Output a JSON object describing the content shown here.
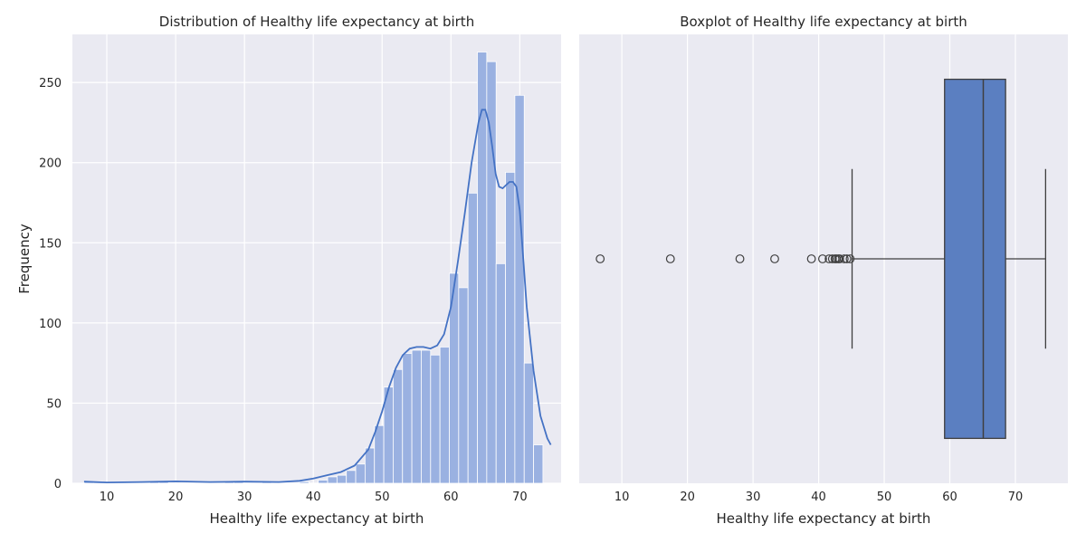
{
  "chart_data": [
    {
      "type": "bar",
      "title": "Distribution of Healthy life expectancy at birth",
      "xlabel": "Healthy life expectancy at birth",
      "ylabel": "Frequency",
      "xlim": [
        5,
        76
      ],
      "ylim": [
        0,
        280
      ],
      "xticks": [
        10,
        20,
        30,
        40,
        50,
        60,
        70
      ],
      "yticks": [
        0,
        50,
        100,
        150,
        200,
        250
      ],
      "grid": true,
      "bin_width": 1.36,
      "bars": [
        {
          "x0": 6.72,
          "count": 1
        },
        {
          "x0": 8.08,
          "count": 1
        },
        {
          "x0": 16.24,
          "count": 1
        },
        {
          "x0": 17.6,
          "count": 1
        },
        {
          "x0": 27.12,
          "count": 1
        },
        {
          "x0": 28.48,
          "count": 1
        },
        {
          "x0": 32.56,
          "count": 1
        },
        {
          "x0": 38.0,
          "count": 1
        },
        {
          "x0": 40.72,
          "count": 2
        },
        {
          "x0": 42.08,
          "count": 4
        },
        {
          "x0": 43.44,
          "count": 5
        },
        {
          "x0": 44.8,
          "count": 8
        },
        {
          "x0": 46.16,
          "count": 12
        },
        {
          "x0": 47.52,
          "count": 22
        },
        {
          "x0": 48.88,
          "count": 36
        },
        {
          "x0": 50.24,
          "count": 60
        },
        {
          "x0": 51.6,
          "count": 71
        },
        {
          "x0": 52.96,
          "count": 81
        },
        {
          "x0": 54.32,
          "count": 83
        },
        {
          "x0": 55.68,
          "count": 83
        },
        {
          "x0": 57.04,
          "count": 80
        },
        {
          "x0": 58.4,
          "count": 85
        },
        {
          "x0": 59.76,
          "count": 131
        },
        {
          "x0": 61.12,
          "count": 122
        },
        {
          "x0": 62.48,
          "count": 181
        },
        {
          "x0": 63.84,
          "count": 269
        },
        {
          "x0": 65.2,
          "count": 263
        },
        {
          "x0": 66.56,
          "count": 137
        },
        {
          "x0": 67.92,
          "count": 194
        },
        {
          "x0": 69.28,
          "count": 242
        },
        {
          "x0": 70.64,
          "count": 75
        },
        {
          "x0": 72.0,
          "count": 24
        }
      ],
      "kde": {
        "x": [
          6.7,
          10,
          15,
          20,
          25,
          30,
          35,
          38,
          40,
          42,
          44,
          46,
          48,
          49,
          50,
          51,
          52,
          53,
          54,
          55,
          56,
          57,
          58,
          59,
          60,
          61,
          62,
          63,
          64,
          64.5,
          65,
          65.5,
          66,
          66.5,
          67,
          67.5,
          68,
          68.5,
          69,
          69.5,
          70,
          70.5,
          71,
          72,
          73,
          74,
          74.5
        ],
        "y": [
          1,
          0.5,
          0.8,
          1.2,
          0.8,
          1,
          0.8,
          1.5,
          3,
          5,
          7,
          11,
          21,
          32,
          45,
          60,
          72,
          80,
          84,
          85,
          85,
          84,
          86,
          93,
          110,
          138,
          168,
          200,
          225,
          233,
          233,
          225,
          210,
          193,
          185,
          184,
          186,
          188,
          188,
          185,
          170,
          140,
          110,
          70,
          42,
          28,
          24
        ]
      },
      "color": "#4472c4"
    },
    {
      "type": "box",
      "title": "Boxplot of Healthy life expectancy at birth",
      "xlabel": "Healthy life expectancy at birth",
      "xlim": [
        3.5,
        78
      ],
      "xticks": [
        10,
        20,
        30,
        40,
        50,
        60,
        70
      ],
      "grid": true,
      "q1": 59.2,
      "median": 65.1,
      "q3": 68.5,
      "whisker_low": 45.1,
      "whisker_high": 74.6,
      "outliers": [
        6.7,
        17.4,
        28.0,
        33.3,
        38.9,
        40.6,
        41.6,
        42.1,
        42.5,
        42.7,
        43.0,
        43.2,
        43.9,
        44.3,
        44.8
      ],
      "color": "#5b7fc1"
    }
  ]
}
